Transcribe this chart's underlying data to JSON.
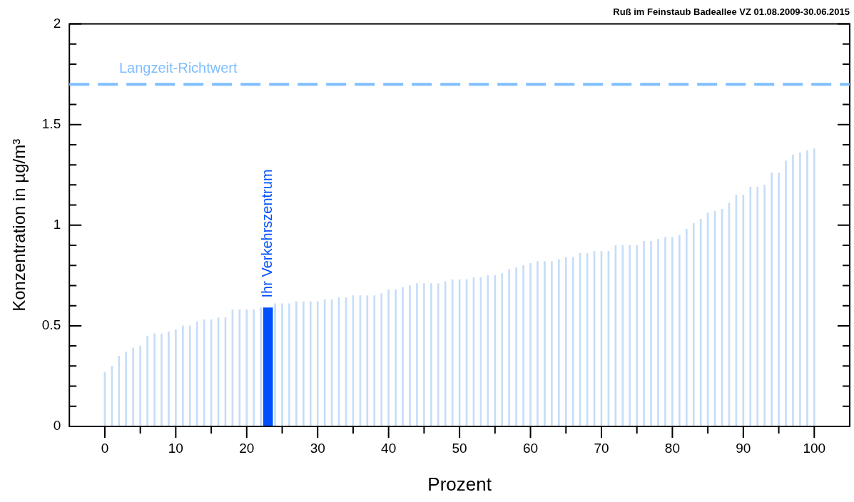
{
  "chart_data": {
    "type": "bar",
    "title": "Ruß im Feinstaub Badeallee VZ 01.08.2009-30.06.2015",
    "xlabel": "Prozent",
    "ylabel": "Konzentration in µg/m³",
    "x": [
      0,
      1,
      2,
      3,
      4,
      5,
      6,
      7,
      8,
      9,
      10,
      11,
      12,
      13,
      14,
      15,
      16,
      17,
      18,
      19,
      20,
      21,
      22,
      23,
      24,
      25,
      26,
      27,
      28,
      29,
      30,
      31,
      32,
      33,
      34,
      35,
      36,
      37,
      38,
      39,
      40,
      41,
      42,
      43,
      44,
      45,
      46,
      47,
      48,
      49,
      50,
      51,
      52,
      53,
      54,
      55,
      56,
      57,
      58,
      59,
      60,
      61,
      62,
      63,
      64,
      65,
      66,
      67,
      68,
      69,
      70,
      71,
      72,
      73,
      74,
      75,
      76,
      77,
      78,
      79,
      80,
      81,
      82,
      83,
      84,
      85,
      86,
      87,
      88,
      89,
      90,
      91,
      92,
      93,
      94,
      95,
      96,
      97,
      98,
      99,
      100
    ],
    "values": [
      0.27,
      0.3,
      0.35,
      0.37,
      0.39,
      0.4,
      0.45,
      0.46,
      0.46,
      0.47,
      0.48,
      0.5,
      0.5,
      0.52,
      0.53,
      0.53,
      0.54,
      0.54,
      0.58,
      0.58,
      0.58,
      0.58,
      0.59,
      0.59,
      0.61,
      0.61,
      0.61,
      0.62,
      0.62,
      0.62,
      0.62,
      0.63,
      0.63,
      0.64,
      0.64,
      0.65,
      0.65,
      0.65,
      0.65,
      0.66,
      0.68,
      0.68,
      0.69,
      0.7,
      0.71,
      0.71,
      0.71,
      0.71,
      0.72,
      0.73,
      0.73,
      0.73,
      0.74,
      0.74,
      0.75,
      0.75,
      0.76,
      0.78,
      0.79,
      0.8,
      0.81,
      0.82,
      0.82,
      0.82,
      0.83,
      0.84,
      0.84,
      0.86,
      0.86,
      0.87,
      0.87,
      0.87,
      0.9,
      0.9,
      0.9,
      0.9,
      0.92,
      0.92,
      0.93,
      0.94,
      0.94,
      0.95,
      0.98,
      1.01,
      1.03,
      1.06,
      1.07,
      1.08,
      1.11,
      1.15,
      1.15,
      1.19,
      1.19,
      1.2,
      1.26,
      1.26,
      1.32,
      1.35,
      1.36,
      1.37,
      1.38
    ],
    "colors": [
      "#c6ddf7",
      "#c6ddf7",
      "#c6ddf7",
      "#c6ddf7",
      "#c6ddf7",
      "#c6ddf7",
      "#c6ddf7",
      "#c6ddf7",
      "#c6ddf7",
      "#c6ddf7",
      "#c6ddf7",
      "#c6ddf7",
      "#c6ddf7",
      "#c6ddf7",
      "#c6ddf7",
      "#c6ddf7",
      "#c6ddf7",
      "#c6ddf7",
      "#c6ddf7",
      "#c6ddf7",
      "#c6ddf7",
      "#c6ddf7",
      "#c6ddf7",
      "#0050ff",
      "#c6ddf7",
      "#c6ddf7",
      "#c6ddf7",
      "#c6ddf7",
      "#c6ddf7",
      "#c6ddf7",
      "#c6ddf7",
      "#c6ddf7",
      "#c6ddf7",
      "#c6ddf7",
      "#c6ddf7",
      "#c6ddf7",
      "#c6ddf7",
      "#c6ddf7",
      "#c6ddf7",
      "#c6ddf7",
      "#c6ddf7",
      "#c6ddf7",
      "#c6ddf7",
      "#c6ddf7",
      "#c6ddf7",
      "#c6ddf7",
      "#c6ddf7",
      "#c6ddf7",
      "#c6ddf7",
      "#c6ddf7",
      "#c6ddf7",
      "#c6ddf7",
      "#c6ddf7",
      "#c6ddf7",
      "#c6ddf7",
      "#c6ddf7",
      "#c6ddf7",
      "#c6ddf7",
      "#c6ddf7",
      "#c6ddf7",
      "#c6ddf7",
      "#c6ddf7",
      "#c6ddf7",
      "#c6ddf7",
      "#c6ddf7",
      "#c6ddf7",
      "#c6ddf7",
      "#c6ddf7",
      "#c6ddf7",
      "#c6ddf7",
      "#c6ddf7",
      "#c6ddf7",
      "#c6ddf7",
      "#c6ddf7",
      "#c6ddf7",
      "#c6ddf7",
      "#c6ddf7",
      "#c6ddf7",
      "#c6ddf7",
      "#c6ddf7",
      "#c6ddf7",
      "#c6ddf7",
      "#c6ddf7",
      "#c6ddf7",
      "#c6ddf7",
      "#c6ddf7",
      "#c6ddf7",
      "#c6ddf7",
      "#c6ddf7",
      "#c6ddf7",
      "#c6ddf7",
      "#c6ddf7",
      "#c6ddf7",
      "#c6ddf7",
      "#c6ddf7",
      "#c6ddf7",
      "#c6ddf7",
      "#c6ddf7",
      "#c6ddf7",
      "#c6ddf7",
      "#c6ddf7"
    ],
    "xlim": [
      -5,
      105
    ],
    "xticks": [
      0,
      {
        "value": 5,
        "label": null
      },
      10,
      {
        "value": 15,
        "label": null
      },
      20,
      {
        "value": 25,
        "label": null
      },
      30,
      {
        "value": 35,
        "label": null
      },
      40,
      {
        "value": 45,
        "label": null
      },
      50,
      {
        "value": 55,
        "label": null
      },
      60,
      {
        "value": 65,
        "label": null
      },
      70,
      {
        "value": 75,
        "label": null
      },
      80,
      {
        "value": 85,
        "label": null
      },
      90,
      {
        "value": 95,
        "label": null
      },
      100
    ],
    "ylim": [
      0,
      2
    ],
    "yticks": [
      0,
      {
        "value": 0.1,
        "label": null
      },
      {
        "value": 0.2,
        "label": null
      },
      {
        "value": 0.3,
        "label": null
      },
      {
        "value": 0.4,
        "label": null
      },
      0.5,
      {
        "value": 0.6,
        "label": null
      },
      {
        "value": 0.7,
        "label": null
      },
      {
        "value": 0.8,
        "label": null
      },
      {
        "value": 0.9,
        "label": null
      },
      1,
      {
        "value": 1.1,
        "label": null
      },
      {
        "value": 1.2,
        "label": null
      },
      {
        "value": 1.3,
        "label": null
      },
      {
        "value": 1.4,
        "label": null
      },
      1.5,
      {
        "value": 1.6,
        "label": null
      },
      {
        "value": 1.7,
        "label": null
      },
      {
        "value": 1.8,
        "label": null
      },
      {
        "value": 1.9,
        "label": null
      },
      2
    ],
    "ref_lines": [
      {
        "axis": "y",
        "value": 1.7,
        "label": "Langzeit-Richtwert",
        "color": "#80bfff",
        "line_style": "dashed"
      }
    ],
    "annotations": [
      {
        "text": "Ihr Verkehrszentrum",
        "x": 23,
        "y": 0.59
      }
    ],
    "grid": false,
    "legend": false
  }
}
